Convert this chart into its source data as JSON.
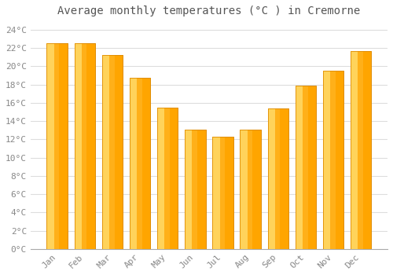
{
  "title": "Average monthly temperatures (°C ) in Cremorne",
  "months": [
    "Jan",
    "Feb",
    "Mar",
    "Apr",
    "May",
    "Jun",
    "Jul",
    "Aug",
    "Sep",
    "Oct",
    "Nov",
    "Dec"
  ],
  "values": [
    22.5,
    22.5,
    21.2,
    18.7,
    15.5,
    13.1,
    12.3,
    13.1,
    15.4,
    17.9,
    19.5,
    21.7
  ],
  "bar_color_light": "#FFD966",
  "bar_color_main": "#FFA500",
  "bar_color_edge": "#E08C00",
  "background_color": "#FFFFFF",
  "plot_bg_color": "#FFFFFF",
  "grid_color": "#DDDDDD",
  "ylim": [
    0,
    25
  ],
  "yticks": [
    0,
    2,
    4,
    6,
    8,
    10,
    12,
    14,
    16,
    18,
    20,
    22,
    24
  ],
  "ytick_labels": [
    "0°C",
    "2°C",
    "4°C",
    "6°C",
    "8°C",
    "10°C",
    "12°C",
    "14°C",
    "16°C",
    "18°C",
    "20°C",
    "22°C",
    "24°C"
  ],
  "title_fontsize": 10,
  "tick_fontsize": 8,
  "font_color": "#888888",
  "title_color": "#555555"
}
